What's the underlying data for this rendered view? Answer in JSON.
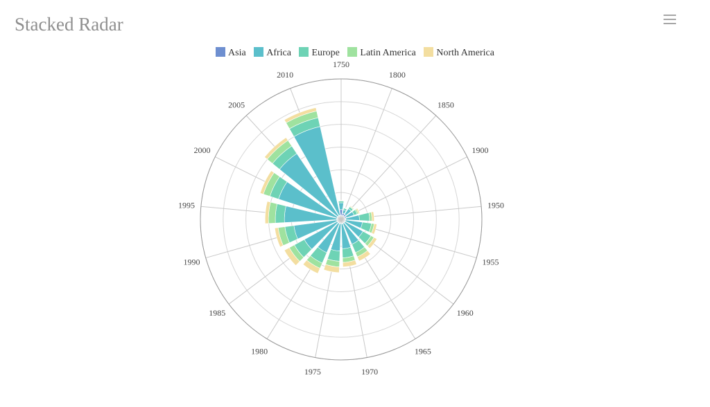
{
  "title": "Stacked Radar",
  "toolbar": {
    "menu_icon": "hamburger-menu-icon"
  },
  "chart_data": {
    "type": "bar",
    "subtype": "polar-stacked",
    "categories": [
      "1750",
      "1800",
      "1850",
      "1900",
      "1950",
      "1955",
      "1960",
      "1965",
      "1970",
      "1975",
      "1980",
      "1985",
      "1990",
      "1995",
      "2000",
      "2005",
      "2010"
    ],
    "series": [
      {
        "name": "Asia",
        "color": "#6e8fd0",
        "values": [
          25,
          10,
          9,
          6,
          2,
          1,
          1,
          1,
          1,
          1,
          1,
          1,
          1,
          1,
          1,
          1,
          1
        ]
      },
      {
        "name": "Africa",
        "color": "#5bbfcb",
        "values": [
          30,
          15,
          30,
          35,
          60,
          75,
          90,
          100,
          110,
          120,
          140,
          165,
          190,
          230,
          270,
          330,
          400
        ]
      },
      {
        "name": "Europe",
        "color": "#6ed3b5",
        "values": [
          8,
          8,
          10,
          15,
          45,
          40,
          40,
          40,
          40,
          45,
          50,
          50,
          40,
          40,
          40,
          40,
          40
        ]
      },
      {
        "name": "Latin America",
        "color": "#9fe29f",
        "values": [
          2,
          2,
          3,
          6,
          10,
          12,
          15,
          20,
          20,
          25,
          25,
          25,
          30,
          30,
          30,
          30,
          30
        ]
      },
      {
        "name": "North America",
        "color": "#f3dea0",
        "values": [
          2,
          2,
          3,
          6,
          10,
          12,
          15,
          20,
          20,
          25,
          25,
          25,
          15,
          15,
          15,
          15,
          15
        ]
      }
    ],
    "radius_max": 600,
    "radial_ticks": [
      100,
      200,
      300,
      400,
      500,
      600
    ],
    "legend_position": "top",
    "grid": true
  }
}
